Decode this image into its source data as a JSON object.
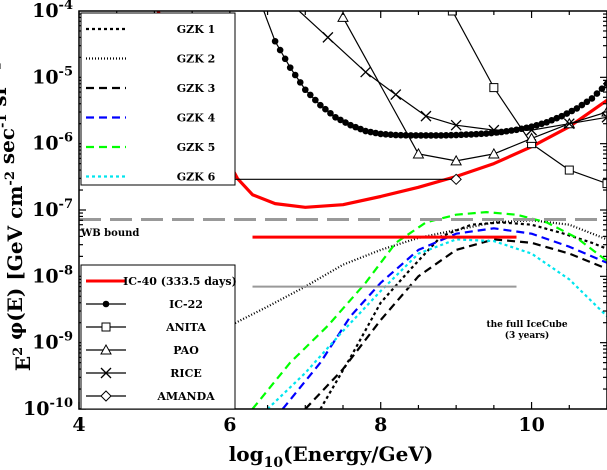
{
  "chart_data": {
    "type": "line",
    "xlabel": "log10(Energy/GeV)",
    "ylabel": "E^2 φ(E) [GeV cm^-2 sec^-1 sr^-1]",
    "xlim": [
      4,
      11
    ],
    "ylim": [
      1e-10,
      0.0001
    ],
    "yscale": "log",
    "x_ticks": [
      4,
      6,
      8,
      10
    ],
    "y_ticks": [
      "10-10",
      "10-9",
      "10-8",
      "10-7",
      "10-6",
      "10-5",
      "10-4"
    ],
    "legend_upper": [
      "GZK 1",
      "GZK 2",
      "GZK 3",
      "GZK 4",
      "GZK 5",
      "GZK 6"
    ],
    "legend_lower": [
      "IC-40 (333.5 days)",
      "IC-22",
      "ANITA",
      "PAO",
      "RICE",
      "AMANDA"
    ],
    "annotations": {
      "wb": "WB bound",
      "full_ic_1": "the full IceCube",
      "full_ic_2": "(3 years)"
    },
    "series": [
      {
        "name": "GZK 1",
        "color": "#000000",
        "dash": "dotted",
        "points": [
          [
            7.2,
            1e-10
          ],
          [
            7.6,
            6e-10
          ],
          [
            8.0,
            4e-09
          ],
          [
            8.4,
            1.3e-08
          ],
          [
            8.8,
            4e-08
          ],
          [
            9.2,
            6e-08
          ],
          [
            9.6,
            6.5e-08
          ],
          [
            10.0,
            6e-08
          ],
          [
            10.4,
            4.5e-08
          ],
          [
            10.8,
            3.2e-08
          ],
          [
            11.0,
            2.6e-08
          ]
        ]
      },
      {
        "name": "GZK 2",
        "color": "#000000",
        "dash": "finedot",
        "points": [
          [
            5.0,
            4e-10
          ],
          [
            5.5,
            9e-10
          ],
          [
            6.0,
            1.8e-09
          ],
          [
            6.5,
            3.5e-09
          ],
          [
            7.0,
            7e-09
          ],
          [
            7.5,
            1.5e-08
          ],
          [
            8.0,
            2.5e-08
          ],
          [
            8.5,
            3.8e-08
          ],
          [
            9.0,
            5e-08
          ],
          [
            9.5,
            6.5e-08
          ],
          [
            10.0,
            7e-08
          ],
          [
            10.5,
            6e-08
          ],
          [
            11.0,
            3.6e-08
          ]
        ]
      },
      {
        "name": "GZK 3",
        "color": "#000000",
        "dash": "dashed",
        "points": [
          [
            7.0,
            1e-10
          ],
          [
            7.5,
            4e-10
          ],
          [
            8.0,
            2.2e-09
          ],
          [
            8.5,
            1e-08
          ],
          [
            9.0,
            2.5e-08
          ],
          [
            9.5,
            3.6e-08
          ],
          [
            10.0,
            3.2e-08
          ],
          [
            10.5,
            2.2e-08
          ],
          [
            11.0,
            1.3e-08
          ]
        ]
      },
      {
        "name": "GZK 4",
        "color": "#0000ff",
        "dash": "dashed",
        "points": [
          [
            6.7,
            1e-10
          ],
          [
            7.2,
            5e-10
          ],
          [
            7.6,
            2.5e-09
          ],
          [
            8.0,
            8e-09
          ],
          [
            8.5,
            2.5e-08
          ],
          [
            9.0,
            4.4e-08
          ],
          [
            9.5,
            5.3e-08
          ],
          [
            10.0,
            4.4e-08
          ],
          [
            10.5,
            2.8e-08
          ],
          [
            11.0,
            1.6e-08
          ]
        ]
      },
      {
        "name": "GZK 5",
        "color": "#00ff00",
        "dash": "dashed",
        "points": [
          [
            6.3,
            1e-10
          ],
          [
            6.8,
            5e-10
          ],
          [
            7.3,
            1.8e-09
          ],
          [
            7.8,
            8e-09
          ],
          [
            8.2,
            3.2e-08
          ],
          [
            8.6,
            6.5e-08
          ],
          [
            9.0,
            8.5e-08
          ],
          [
            9.4,
            9.3e-08
          ],
          [
            9.8,
            8.5e-08
          ],
          [
            10.2,
            6.5e-08
          ],
          [
            10.6,
            3.8e-08
          ],
          [
            11.0,
            1.7e-08
          ]
        ]
      },
      {
        "name": "GZK 6",
        "color": "#00e5ee",
        "dash": "dotted",
        "points": [
          [
            6.5,
            1e-10
          ],
          [
            7.0,
            3.5e-10
          ],
          [
            7.5,
            1.5e-09
          ],
          [
            8.0,
            6e-09
          ],
          [
            8.5,
            2.2e-08
          ],
          [
            9.0,
            3.6e-08
          ],
          [
            9.5,
            3.4e-08
          ],
          [
            10.0,
            2.2e-08
          ],
          [
            10.5,
            9e-09
          ],
          [
            11.0,
            2.5e-09
          ]
        ]
      },
      {
        "name": "IC-40 (333.5 days)",
        "color": "#ff0000",
        "dash": "solid",
        "width": 3.2,
        "points": [
          [
            5.05,
            0.0001
          ],
          [
            5.3,
            1.5e-05
          ],
          [
            5.6,
            3e-06
          ],
          [
            5.9,
            8e-07
          ],
          [
            6.1,
            3e-07
          ],
          [
            6.3,
            1.7e-07
          ],
          [
            6.6,
            1.25e-07
          ],
          [
            7.0,
            1.1e-07
          ],
          [
            7.5,
            1.2e-07
          ],
          [
            8.0,
            1.6e-07
          ],
          [
            8.5,
            2.2e-07
          ],
          [
            9.0,
            3.2e-07
          ],
          [
            9.5,
            5e-07
          ],
          [
            10.0,
            9e-07
          ],
          [
            10.5,
            1.8e-06
          ],
          [
            11.0,
            4.5e-06
          ]
        ]
      },
      {
        "name": "IC-22",
        "color": "#000000",
        "dash": "solid",
        "marker": "dot",
        "width": 1.2,
        "points": [
          [
            6.45,
            0.0001
          ],
          [
            6.5,
            7e-05
          ],
          [
            6.6,
            3.5e-05
          ],
          [
            6.8,
            1.4e-05
          ],
          [
            7.0,
            6.5e-06
          ],
          [
            7.2,
            3.8e-06
          ],
          [
            7.4,
            2.5e-06
          ],
          [
            7.6,
            1.9e-06
          ],
          [
            7.8,
            1.55e-06
          ],
          [
            8.0,
            1.4e-06
          ],
          [
            8.2,
            1.35e-06
          ],
          [
            8.4,
            1.33e-06
          ],
          [
            8.6,
            1.33e-06
          ],
          [
            8.8,
            1.33e-06
          ],
          [
            9.0,
            1.35e-06
          ],
          [
            9.2,
            1.38e-06
          ],
          [
            9.4,
            1.42e-06
          ],
          [
            9.6,
            1.5e-06
          ],
          [
            9.8,
            1.62e-06
          ],
          [
            10.0,
            1.8e-06
          ],
          [
            10.2,
            2.1e-06
          ],
          [
            10.4,
            2.6e-06
          ],
          [
            10.6,
            3.4e-06
          ],
          [
            10.8,
            4.8e-06
          ],
          [
            11.0,
            8e-06
          ]
        ]
      },
      {
        "name": "ANITA",
        "color": "#000000",
        "dash": "solid",
        "marker": "square",
        "width": 1.2,
        "points": [
          [
            8.95,
            0.0001
          ],
          [
            9.5,
            7e-06
          ],
          [
            10.0,
            1e-06
          ],
          [
            10.5,
            4e-07
          ],
          [
            11.0,
            2.5e-07
          ]
        ]
      },
      {
        "name": "PAO",
        "color": "#000000",
        "dash": "solid",
        "marker": "triangle",
        "width": 1.2,
        "points": [
          [
            7.5,
            8e-05
          ],
          [
            8.5,
            7e-07
          ],
          [
            9.0,
            5.5e-07
          ],
          [
            9.5,
            7e-07
          ],
          [
            10.0,
            1.2e-06
          ],
          [
            10.5,
            2e-06
          ],
          [
            11.0,
            3e-06
          ]
        ]
      },
      {
        "name": "RICE",
        "color": "#000000",
        "dash": "solid",
        "marker": "x",
        "width": 1.2,
        "points": [
          [
            6.0,
            0.0009
          ],
          [
            7.3,
            4e-05
          ],
          [
            7.8,
            1.2e-05
          ],
          [
            8.2,
            5.5e-06
          ],
          [
            8.6,
            2.6e-06
          ],
          [
            9.0,
            1.9e-06
          ],
          [
            9.5,
            1.6e-06
          ],
          [
            10.0,
            1.6e-06
          ],
          [
            10.5,
            2e-06
          ],
          [
            11.0,
            2.5e-06
          ]
        ]
      },
      {
        "name": "AMANDA",
        "color": "#000000",
        "dash": "solid",
        "marker": "diamond",
        "width": 1.2,
        "points": [
          [
            5.3,
            2.9e-07
          ],
          [
            9.0,
            2.9e-07
          ]
        ]
      },
      {
        "name": "WB bound",
        "color": "#999999",
        "dash": "wb",
        "width": 3,
        "points": [
          [
            4.0,
            7.2e-08
          ],
          [
            11.0,
            7.2e-08
          ]
        ]
      },
      {
        "name": "IC-40 differential",
        "color": "#ff0000",
        "dash": "solid",
        "width": 3,
        "points": [
          [
            6.3,
            3.9e-08
          ],
          [
            9.8,
            3.9e-08
          ]
        ]
      },
      {
        "name": "the full IceCube (3 years)",
        "color": "#999999",
        "dash": "solid",
        "width": 2,
        "points": [
          [
            6.3,
            7e-09
          ],
          [
            9.8,
            7e-09
          ]
        ]
      }
    ]
  }
}
